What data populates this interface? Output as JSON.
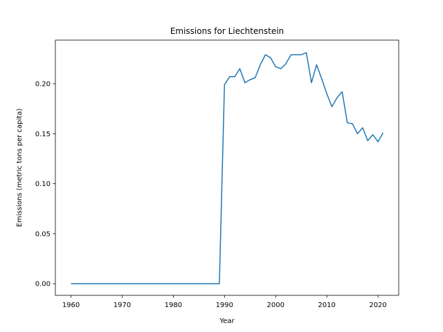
{
  "chart_data": {
    "type": "line",
    "title": "Emissions for Liechtenstein",
    "xlabel": "Year",
    "ylabel": "Emissions (metric tons per capita)",
    "xlim": [
      1956.95,
      2024.05
    ],
    "ylim": [
      -0.0116,
      0.2436
    ],
    "xticks": [
      1960,
      1970,
      1980,
      1990,
      2000,
      2010,
      2020
    ],
    "yticks": [
      0.0,
      0.05,
      0.1,
      0.15,
      0.2
    ],
    "ytick_labels": [
      "0.00",
      "0.05",
      "0.10",
      "0.15",
      "0.20"
    ],
    "grid": false,
    "series_color": "#1f77b4",
    "series": [
      {
        "x": [
          1960,
          1961,
          1962,
          1963,
          1964,
          1965,
          1966,
          1967,
          1968,
          1969,
          1970,
          1971,
          1972,
          1973,
          1974,
          1975,
          1976,
          1977,
          1978,
          1979,
          1980,
          1981,
          1982,
          1983,
          1984,
          1985,
          1986,
          1987,
          1988,
          1989,
          1990,
          1991,
          1992,
          1993,
          1994,
          1995,
          1996,
          1997,
          1998,
          1999,
          2000,
          2001,
          2002,
          2003,
          2004,
          2005,
          2006,
          2007,
          2008,
          2009,
          2010,
          2011,
          2012,
          2013,
          2014,
          2015,
          2016,
          2017,
          2018,
          2019,
          2020,
          2021
        ],
        "y": [
          0,
          0,
          0,
          0,
          0,
          0,
          0,
          0,
          0,
          0,
          0,
          0,
          0,
          0,
          0,
          0,
          0,
          0,
          0,
          0,
          0,
          0,
          0,
          0,
          0,
          0,
          0,
          0,
          0,
          0,
          0.199,
          0.207,
          0.207,
          0.215,
          0.201,
          0.204,
          0.206,
          0.219,
          0.229,
          0.226,
          0.217,
          0.215,
          0.22,
          0.229,
          0.229,
          0.229,
          0.231,
          0.201,
          0.219,
          0.205,
          0.19,
          0.177,
          0.186,
          0.192,
          0.161,
          0.16,
          0.15,
          0.156,
          0.143,
          0.149,
          0.142,
          0.151
        ]
      }
    ]
  }
}
